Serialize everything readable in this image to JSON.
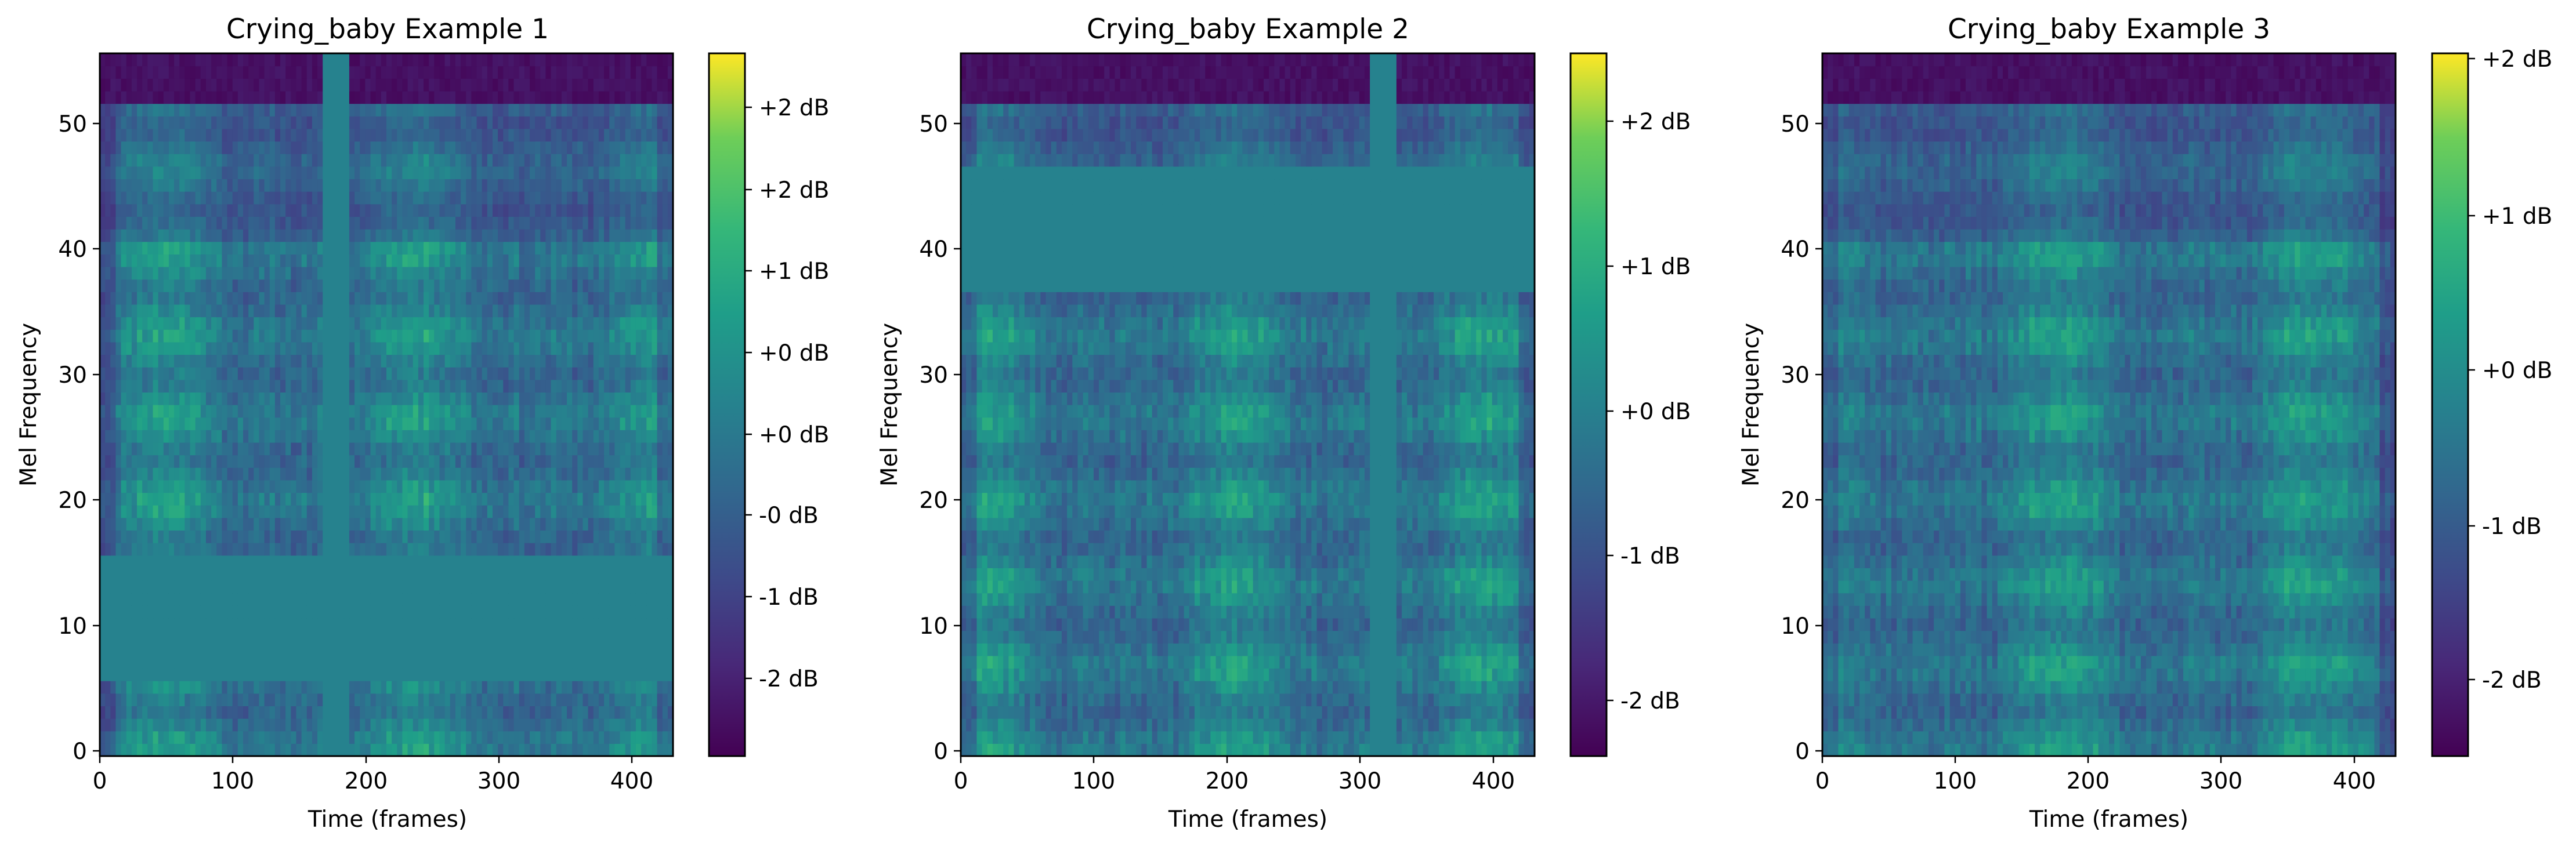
{
  "chart_data": [
    {
      "type": "heatmap",
      "title": "Crying_baby Example 1",
      "xlabel": "Time (frames)",
      "ylabel": "Mel Frequency",
      "xlim": [
        0,
        431
      ],
      "ylim": [
        0,
        56
      ],
      "xticks": [
        "0",
        "100",
        "200",
        "300",
        "400"
      ],
      "yticks": [
        "0",
        "10",
        "20",
        "30",
        "40",
        "50"
      ],
      "colorbar": {
        "colormap": "viridis",
        "ticks": [
          "+2 dB",
          "+2 dB",
          "+1 dB",
          "+0 dB",
          "+0 dB",
          "-0 dB",
          "-1 dB",
          "-2 dB"
        ]
      },
      "masks": {
        "time": [
          [
            167,
            186
          ]
        ],
        "freq": [
          [
            5.5,
            15.5
          ]
        ]
      },
      "seed": 11
    },
    {
      "type": "heatmap",
      "title": "Crying_baby Example 2",
      "xlabel": "Time (frames)",
      "ylabel": "Mel Frequency",
      "xlim": [
        0,
        431
      ],
      "ylim": [
        0,
        56
      ],
      "xticks": [
        "0",
        "100",
        "200",
        "300",
        "400"
      ],
      "yticks": [
        "0",
        "10",
        "20",
        "30",
        "40",
        "50"
      ],
      "colorbar": {
        "colormap": "viridis",
        "ticks": [
          "+2 dB",
          "+1 dB",
          "+0 dB",
          "-1 dB",
          "-2 dB"
        ]
      },
      "masks": {
        "time": [
          [
            309,
            328
          ]
        ],
        "freq": [
          [
            36.5,
            46.5
          ]
        ]
      },
      "seed": 23
    },
    {
      "type": "heatmap",
      "title": "Crying_baby Example 3",
      "xlabel": "Time (frames)",
      "ylabel": "Mel Frequency",
      "xlim": [
        0,
        431
      ],
      "ylim": [
        0,
        56
      ],
      "xticks": [
        "0",
        "100",
        "200",
        "300",
        "400"
      ],
      "yticks": [
        "0",
        "10",
        "20",
        "30",
        "40",
        "50"
      ],
      "colorbar": {
        "colormap": "viridis",
        "ticks": [
          "+2 dB",
          "+1 dB",
          "+0 dB",
          "-1 dB",
          "-2 dB"
        ]
      },
      "masks": {
        "time": [],
        "freq": []
      },
      "seed": 37
    }
  ]
}
